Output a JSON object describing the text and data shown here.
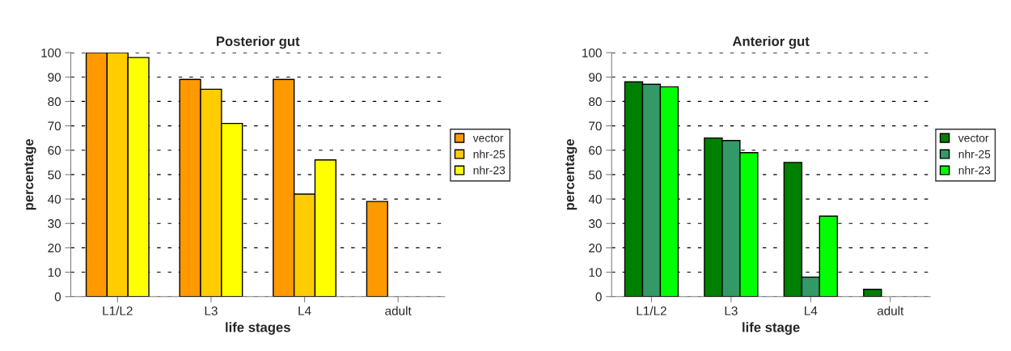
{
  "chart_data": [
    {
      "type": "bar",
      "title": "Posterior gut",
      "xlabel": "life stages",
      "ylabel": "percentage",
      "categories": [
        "L1/L2",
        "L3",
        "L4",
        "adult"
      ],
      "ylim": [
        0,
        100
      ],
      "yticks": [
        0,
        10,
        20,
        30,
        40,
        50,
        60,
        70,
        80,
        90,
        100
      ],
      "grid": "y",
      "legend": "right",
      "series": [
        {
          "name": "vector",
          "color": "#ff9900",
          "values": [
            100,
            89,
            89,
            39
          ]
        },
        {
          "name": "nhr-25",
          "color": "#ffcc00",
          "values": [
            100,
            85,
            42,
            null
          ]
        },
        {
          "name": "nhr-23",
          "color": "#ffff00",
          "values": [
            98,
            71,
            56,
            null
          ]
        }
      ]
    },
    {
      "type": "bar",
      "title": "Anterior gut",
      "xlabel": "life stage",
      "ylabel": "percentage",
      "categories": [
        "L1/L2",
        "L3",
        "L4",
        "adult"
      ],
      "ylim": [
        0,
        100
      ],
      "yticks": [
        0,
        10,
        20,
        30,
        40,
        50,
        60,
        70,
        80,
        90,
        100
      ],
      "grid": "y",
      "legend": "right",
      "series": [
        {
          "name": "vector",
          "color": "#008000",
          "values": [
            88,
            65,
            55,
            3
          ]
        },
        {
          "name": "nhr-25",
          "color": "#339966",
          "values": [
            87,
            64,
            8,
            null
          ]
        },
        {
          "name": "nhr-23",
          "color": "#00ff00",
          "values": [
            86,
            59,
            33,
            null
          ]
        }
      ]
    }
  ]
}
